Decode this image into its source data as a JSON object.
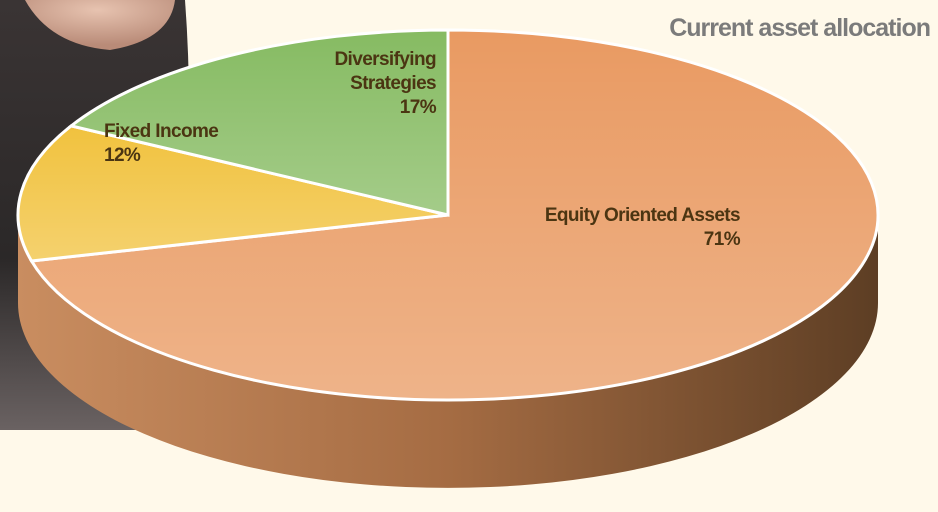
{
  "chart_data": {
    "type": "pie",
    "title": "Current asset allocation",
    "categories": [
      "Equity Oriented Assets",
      "Fixed Income",
      "Diversifying Strategies"
    ],
    "values": [
      71,
      12,
      17
    ],
    "value_labels": [
      "71%",
      "12%",
      "17%"
    ],
    "colors": [
      "#e99a62",
      "#f1c23e",
      "#86bb62"
    ]
  }
}
